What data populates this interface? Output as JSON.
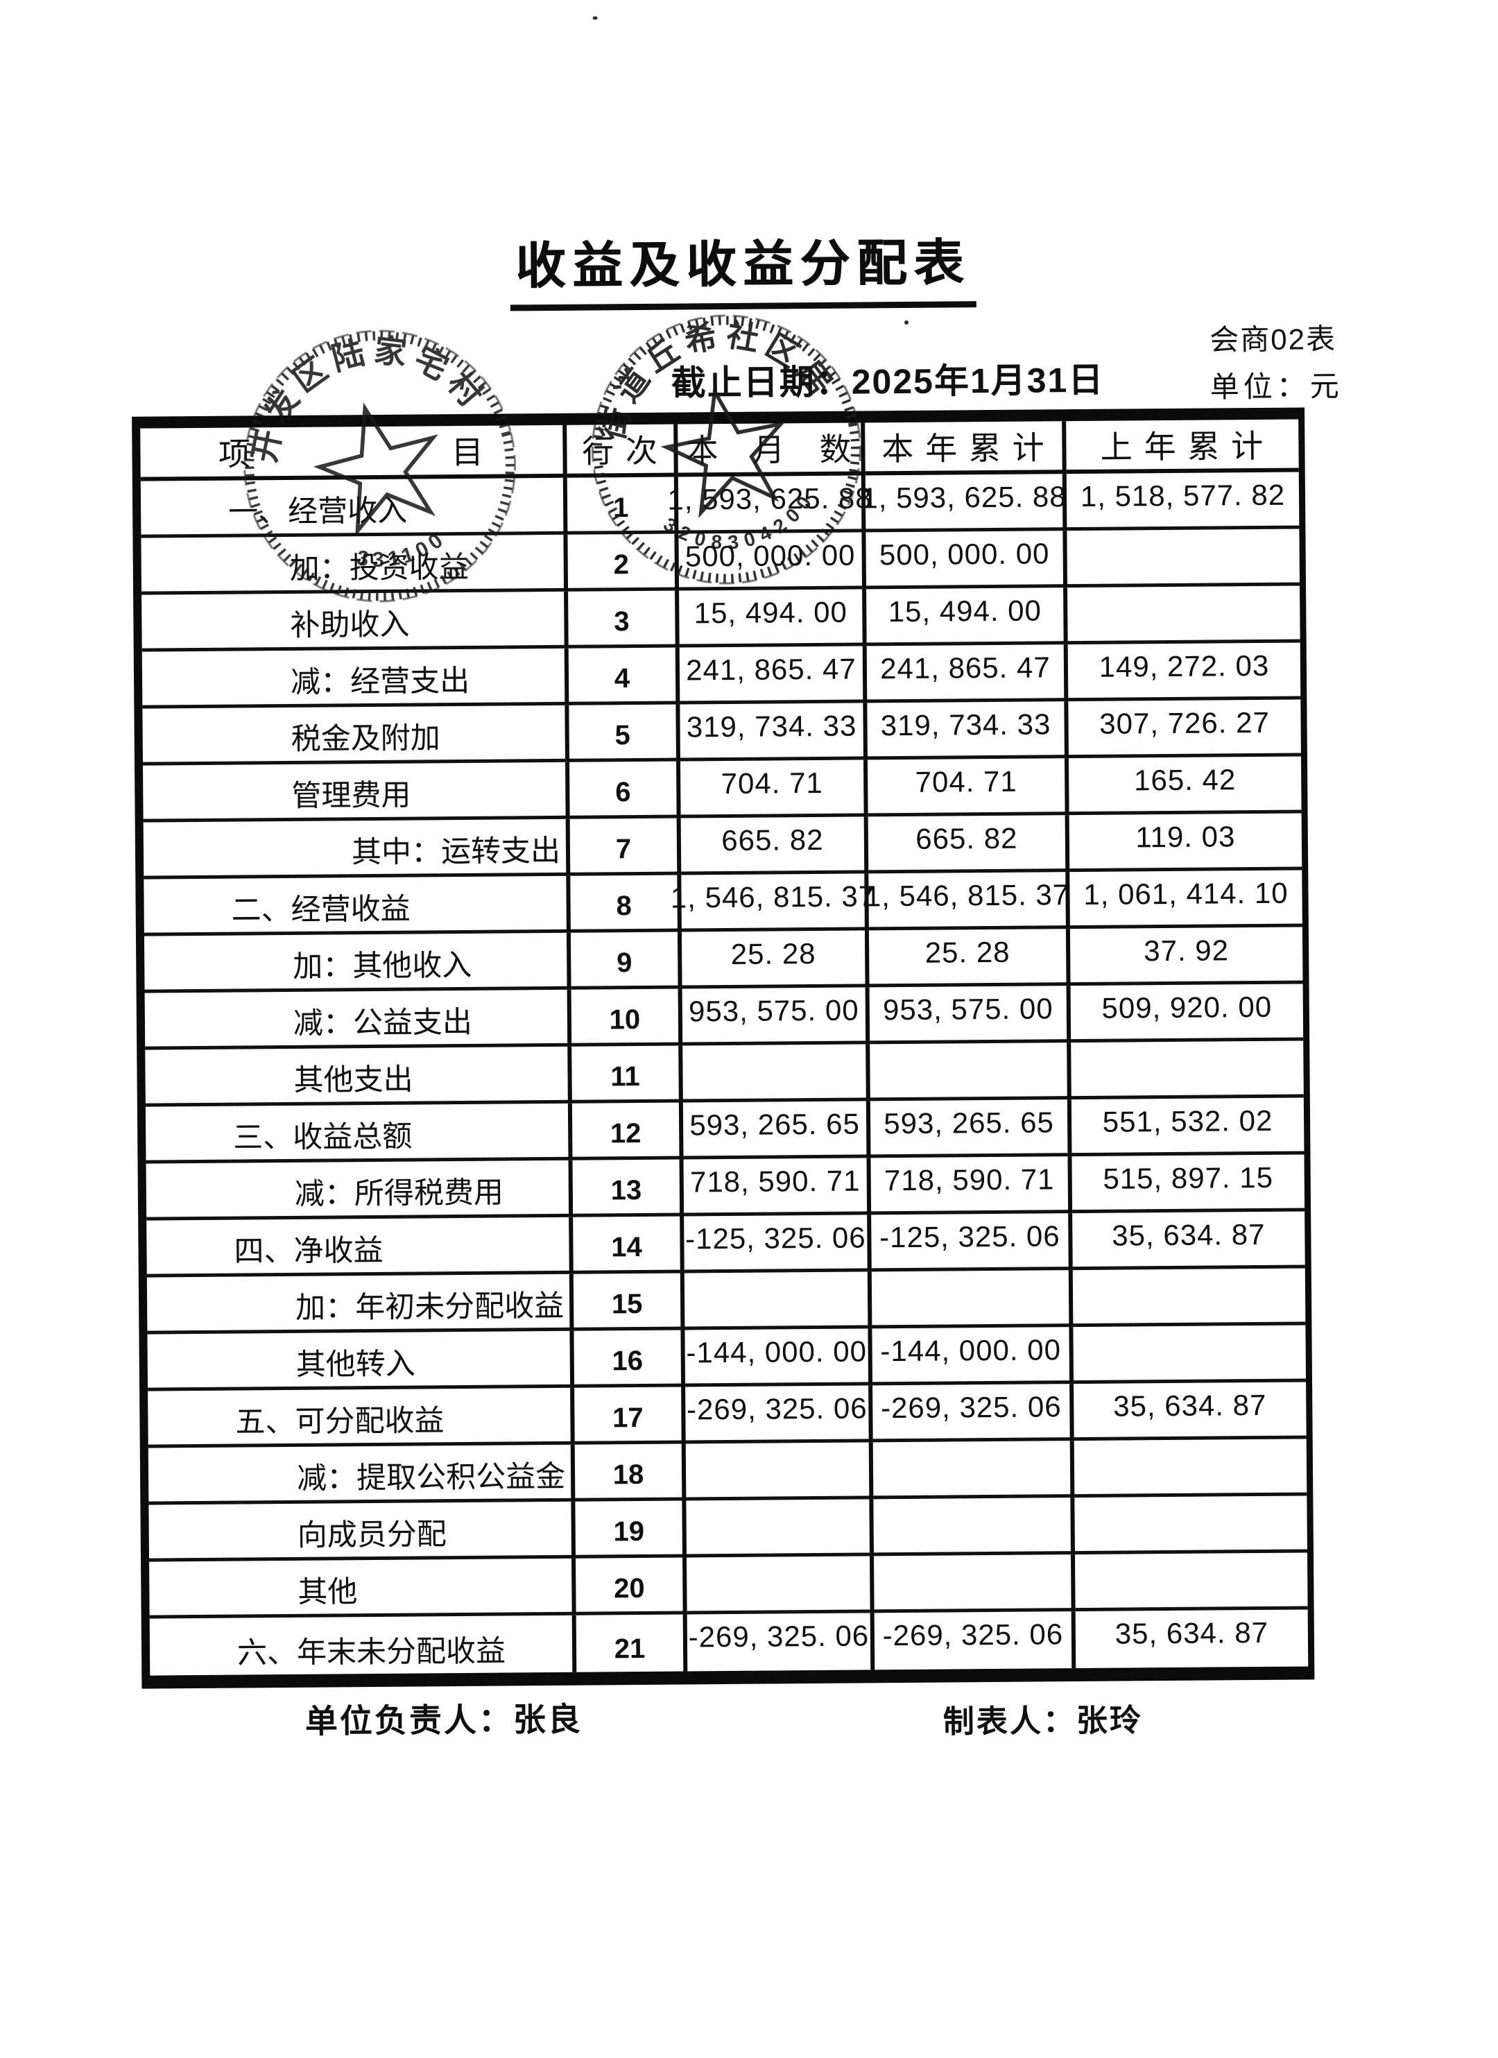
{
  "page": {
    "title": "收益及收益分配表",
    "form_code": "会商02表",
    "unit_label": "单位：元",
    "date_line": "截止日期：2025年1月31日",
    "footer": {
      "manager": "单位负责人：张良",
      "preparer": "制表人：张玲"
    }
  },
  "table": {
    "headers": {
      "item": "项　　　　　　目",
      "line": "行 次",
      "month": "本　月　数",
      "year": "本 年 累 计",
      "prev": "上 年 累 计"
    },
    "rows": [
      {
        "item": "一、经营收入",
        "indent": 0,
        "line_no": "1",
        "month": "1, 593, 625. 88",
        "year": "1, 593, 625. 88",
        "prev_year": "1, 518, 577. 82"
      },
      {
        "item": "加：投资收益",
        "indent": 1,
        "line_no": "2",
        "month": "500, 000. 00",
        "year": "500, 000. 00",
        "prev_year": ""
      },
      {
        "item": "补助收入",
        "indent": 1,
        "line_no": "3",
        "month": "15, 494. 00",
        "year": "15, 494. 00",
        "prev_year": ""
      },
      {
        "item": "减：经营支出",
        "indent": 1,
        "line_no": "4",
        "month": "241, 865. 47",
        "year": "241, 865. 47",
        "prev_year": "149, 272. 03"
      },
      {
        "item": "税金及附加",
        "indent": 1,
        "line_no": "5",
        "month": "319, 734. 33",
        "year": "319, 734. 33",
        "prev_year": "307, 726. 27"
      },
      {
        "item": "管理费用",
        "indent": 1,
        "line_no": "6",
        "month": "704. 71",
        "year": "704. 71",
        "prev_year": "165. 42"
      },
      {
        "item": "其中：运转支出",
        "indent": 2,
        "line_no": "7",
        "month": "665. 82",
        "year": "665. 82",
        "prev_year": "119. 03"
      },
      {
        "item": "二、经营收益",
        "indent": 0,
        "line_no": "8",
        "month": "1, 546, 815. 37",
        "year": "1, 546, 815. 37",
        "prev_year": "1, 061, 414. 10"
      },
      {
        "item": "加：其他收入",
        "indent": 1,
        "line_no": "9",
        "month": "25. 28",
        "year": "25. 28",
        "prev_year": "37. 92"
      },
      {
        "item": "减：公益支出",
        "indent": 1,
        "line_no": "10",
        "month": "953, 575. 00",
        "year": "953, 575. 00",
        "prev_year": "509, 920. 00"
      },
      {
        "item": "其他支出",
        "indent": 1,
        "line_no": "11",
        "month": "",
        "year": "",
        "prev_year": ""
      },
      {
        "item": "三、收益总额",
        "indent": 0,
        "line_no": "12",
        "month": "593, 265. 65",
        "year": "593, 265. 65",
        "prev_year": "551, 532. 02"
      },
      {
        "item": "减：所得税费用",
        "indent": 1,
        "line_no": "13",
        "month": "718, 590. 71",
        "year": "718, 590. 71",
        "prev_year": "515, 897. 15"
      },
      {
        "item": "四、净收益",
        "indent": 0,
        "line_no": "14",
        "month": "-125, 325. 06",
        "year": "-125, 325. 06",
        "prev_year": "35, 634. 87"
      },
      {
        "item": "加：年初未分配收益",
        "indent": 1,
        "line_no": "15",
        "month": "",
        "year": "",
        "prev_year": ""
      },
      {
        "item": "其他转入",
        "indent": 1,
        "line_no": "16",
        "month": "-144, 000. 00",
        "year": "-144, 000. 00",
        "prev_year": ""
      },
      {
        "item": "五、可分配收益",
        "indent": 0,
        "line_no": "17",
        "month": "-269, 325. 06",
        "year": "-269, 325. 06",
        "prev_year": "35, 634. 87"
      },
      {
        "item": "减：提取公积公益金",
        "indent": 1,
        "line_no": "18",
        "month": "",
        "year": "",
        "prev_year": ""
      },
      {
        "item": "向成员分配",
        "indent": 1,
        "line_no": "19",
        "month": "",
        "year": "",
        "prev_year": ""
      },
      {
        "item": "其他",
        "indent": 1,
        "line_no": "20",
        "month": "",
        "year": "",
        "prev_year": ""
      },
      {
        "item": "六、年末未分配收益",
        "indent": 0,
        "line_no": "21",
        "month": "-269, 325. 06",
        "year": "-269, 325. 06",
        "prev_year": "35, 634. 87"
      }
    ]
  },
  "stamps": {
    "left": {
      "arc_text": "开发区陆家宅村",
      "number": "331100"
    },
    "right": {
      "arc_text": "街道丘希社区居",
      "number": "3208304200"
    }
  }
}
